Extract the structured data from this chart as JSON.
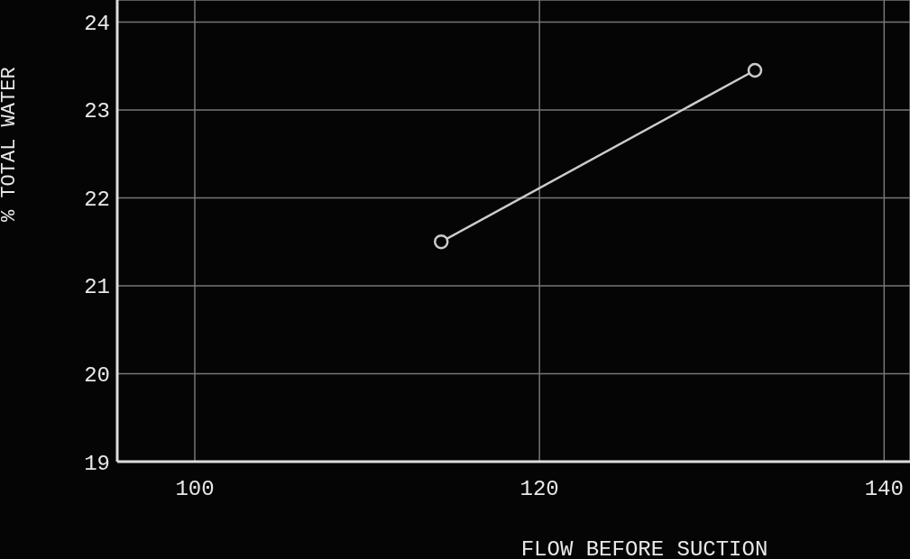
{
  "chart_data": {
    "type": "line",
    "xlabel": "FLOW BEFORE SUCTION",
    "ylabel": "% TOTAL WATER",
    "x": [
      114.3,
      132.5
    ],
    "series": [
      {
        "color": "#cccccc",
        "values": [
          21.5,
          23.45
        ]
      }
    ],
    "xlim": [
      95.5,
      141.5
    ],
    "xticks": [
      100,
      120,
      140
    ],
    "ylim": [
      19,
      24.25
    ],
    "yticks": [
      19,
      20,
      21,
      22,
      23,
      24
    ],
    "grid": true,
    "marker": "circle",
    "line_style": "solid",
    "legend": false
  }
}
